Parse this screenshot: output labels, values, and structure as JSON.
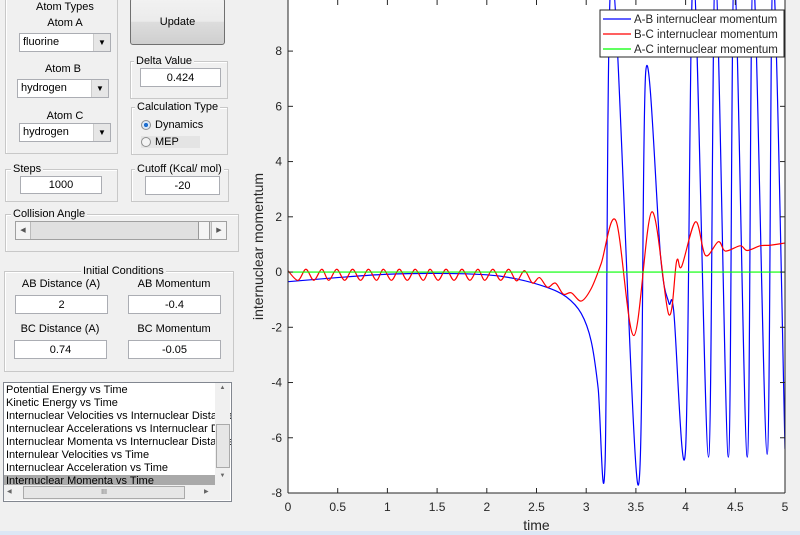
{
  "controls": {
    "atom_types_title": "Atom Types",
    "atom_a_label": "Atom A",
    "atom_a_value": "fluorine",
    "atom_b_label": "Atom B",
    "atom_b_value": "hydrogen",
    "atom_c_label": "Atom C",
    "atom_c_value": "hydrogen",
    "update_label": "Update",
    "delta_title": "Delta Value",
    "delta_value": "0.424",
    "calc_title": "Calculation Type",
    "calc_options": [
      "Dynamics",
      "MEP"
    ],
    "calc_selected": "Dynamics",
    "steps_title": "Steps",
    "steps_value": "1000",
    "cutoff_title": "Cutoff (Kcal/ mol)",
    "cutoff_value": "-20",
    "collision_title": "Collision Angle",
    "initial_title": "Initial Conditions",
    "ab_distance_label": "AB Distance (A)",
    "ab_distance_value": "2",
    "ab_momentum_label": "AB Momentum",
    "ab_momentum_value": "-0.4",
    "bc_distance_label": "BC Distance (A)",
    "bc_distance_value": "0.74",
    "bc_momentum_label": "BC Momentum",
    "bc_momentum_value": "-0.05"
  },
  "plot_list": {
    "items": [
      "Potential Energy vs Time",
      "Kinetic Energy vs Time",
      "Internuclear Velocities vs Internuclear Distance",
      "Internuclear Accelerations vs Internuclear Distance",
      "Internuclear Momenta vs Internuclear Distance",
      "Internulear Velocities vs Time",
      "Internuclear Acceleration vs Time",
      "Internuclear Momenta vs Time"
    ],
    "selected_index": 7
  },
  "chart_data": {
    "type": "line",
    "title": "",
    "xlabel": "time",
    "ylabel": "internuclear momentum",
    "xlim": [
      0,
      5
    ],
    "ylim": [
      -8,
      9.85
    ],
    "xticks": [
      0,
      0.5,
      1,
      1.5,
      2,
      2.5,
      3,
      3.5,
      4,
      4.5,
      5
    ],
    "yticks": [
      -8,
      -6,
      -4,
      -2,
      0,
      2,
      4,
      6,
      8
    ],
    "grid": false,
    "legend_position": "top-right",
    "series": [
      {
        "name": "A-B internuclear momentum",
        "color": "#0000ff",
        "points": [
          [
            0,
            -0.35
          ],
          [
            0.5,
            -0.2
          ],
          [
            1.0,
            -0.08
          ],
          [
            1.5,
            -0.05
          ],
          [
            2.0,
            -0.1
          ],
          [
            2.3,
            -0.25
          ],
          [
            2.6,
            -0.55
          ],
          [
            2.8,
            -0.9
          ],
          [
            2.95,
            -1.5
          ],
          [
            3.05,
            -2.5
          ],
          [
            3.12,
            -4.2
          ],
          [
            3.19,
            -6.9
          ],
          [
            3.26,
            10.8
          ],
          [
            3.52,
            -7.7
          ],
          [
            3.6,
            7.3
          ],
          [
            3.75,
            0.5
          ],
          [
            3.83,
            -1.1
          ],
          [
            3.88,
            -1.4
          ],
          [
            4.0,
            -6.4
          ],
          [
            4.08,
            10.8
          ],
          [
            4.23,
            -6.7
          ],
          [
            4.3,
            10.8
          ],
          [
            4.43,
            -6.7
          ],
          [
            4.49,
            10.8
          ],
          [
            4.62,
            -6.7
          ],
          [
            4.68,
            10.8
          ],
          [
            4.82,
            -6.6
          ],
          [
            4.88,
            10.8
          ],
          [
            5.0,
            -6.4
          ]
        ]
      },
      {
        "name": "B-C internuclear momentum",
        "color": "#ff0000",
        "points": [
          [
            0,
            0.05
          ],
          [
            0.1,
            -0.3
          ],
          [
            0.18,
            0.1
          ],
          [
            0.26,
            -0.3
          ],
          [
            0.34,
            0.1
          ],
          [
            0.41,
            -0.3
          ],
          [
            0.49,
            0.1
          ],
          [
            0.57,
            -0.3
          ],
          [
            0.65,
            0.1
          ],
          [
            0.73,
            -0.3
          ],
          [
            0.81,
            0.1
          ],
          [
            0.89,
            -0.3
          ],
          [
            0.96,
            0.1
          ],
          [
            1.04,
            -0.3
          ],
          [
            1.12,
            0.1
          ],
          [
            1.2,
            -0.3
          ],
          [
            1.28,
            0.1
          ],
          [
            1.36,
            -0.3
          ],
          [
            1.43,
            0.1
          ],
          [
            1.51,
            -0.3
          ],
          [
            1.59,
            0.1
          ],
          [
            1.67,
            -0.3
          ],
          [
            1.75,
            0.1
          ],
          [
            1.83,
            -0.3
          ],
          [
            1.91,
            0.1
          ],
          [
            1.98,
            -0.3
          ],
          [
            2.06,
            0.1
          ],
          [
            2.14,
            -0.3
          ],
          [
            2.22,
            0.1
          ],
          [
            2.3,
            -0.32
          ],
          [
            2.38,
            0.05
          ],
          [
            2.46,
            -0.4
          ],
          [
            2.53,
            -0.2
          ],
          [
            2.61,
            -0.55
          ],
          [
            2.69,
            -0.4
          ],
          [
            2.77,
            -0.8
          ],
          [
            2.85,
            -0.75
          ],
          [
            2.95,
            -1.05
          ],
          [
            3.05,
            -0.6
          ],
          [
            3.15,
            0.3
          ],
          [
            3.3,
            1.85
          ],
          [
            3.48,
            -2.3
          ],
          [
            3.66,
            2.18
          ],
          [
            3.83,
            -1.53
          ],
          [
            3.91,
            0.4
          ],
          [
            3.96,
            0.2
          ],
          [
            4.1,
            1.82
          ],
          [
            4.2,
            0.6
          ],
          [
            4.33,
            1.1
          ],
          [
            4.4,
            0.76
          ],
          [
            4.55,
            0.95
          ],
          [
            4.62,
            0.78
          ],
          [
            4.75,
            0.95
          ],
          [
            4.85,
            0.97
          ],
          [
            5.0,
            1.05
          ]
        ]
      },
      {
        "name": "A-C internuclear momentum",
        "color": "#00ff00",
        "points": [
          [
            0,
            0
          ],
          [
            5,
            0
          ]
        ]
      }
    ]
  }
}
